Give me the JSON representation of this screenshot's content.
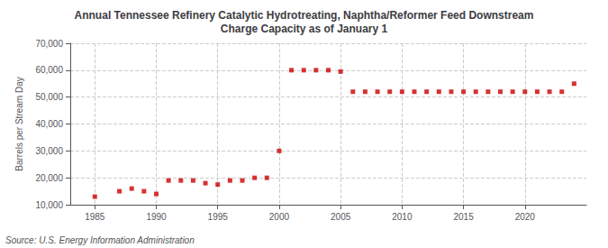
{
  "chart_data": {
    "type": "scatter",
    "title": "Annual Tennessee Refinery Catalytic Hydrotreating, Naphtha/Reformer Feed Downstream\nCharge Capacity as of January 1",
    "ylabel": "Barrels per Stream Day",
    "annotations": [
      "Source: U.S. Energy Information Administration"
    ],
    "x": [
      1985,
      1987,
      1988,
      1989,
      1990,
      1991,
      1992,
      1993,
      1994,
      1995,
      1996,
      1997,
      1998,
      1999,
      2000,
      2001,
      2002,
      2003,
      2004,
      2005,
      2006,
      2007,
      2008,
      2009,
      2010,
      2011,
      2012,
      2013,
      2014,
      2015,
      2016,
      2017,
      2018,
      2019,
      2020,
      2021,
      2022,
      2023,
      2024
    ],
    "values": [
      13000,
      15000,
      16000,
      15000,
      14000,
      19000,
      19000,
      19000,
      18000,
      17500,
      19000,
      19000,
      20000,
      20000,
      30000,
      60000,
      60000,
      60000,
      60000,
      59500,
      52000,
      52000,
      52000,
      52000,
      52000,
      52000,
      52000,
      52000,
      52000,
      52000,
      52000,
      52000,
      52000,
      52000,
      52000,
      52000,
      52000,
      52000,
      55000
    ],
    "color": "#cc0000",
    "marker": "square",
    "xlim": [
      1983,
      2025
    ],
    "xticks": [
      1985,
      1990,
      1995,
      2000,
      2005,
      2010,
      2015,
      2020
    ],
    "ylim": [
      10000,
      70000
    ],
    "yticks": [
      {
        "value": 10000,
        "label": "10,000"
      },
      {
        "value": 20000,
        "label": "20,000"
      },
      {
        "value": 30000,
        "label": "30,000"
      },
      {
        "value": 40000,
        "label": "40,000"
      },
      {
        "value": 50000,
        "label": "50,000"
      },
      {
        "value": 60000,
        "label": "60,000"
      },
      {
        "value": 70000,
        "label": "70,000"
      }
    ],
    "grid": true
  }
}
